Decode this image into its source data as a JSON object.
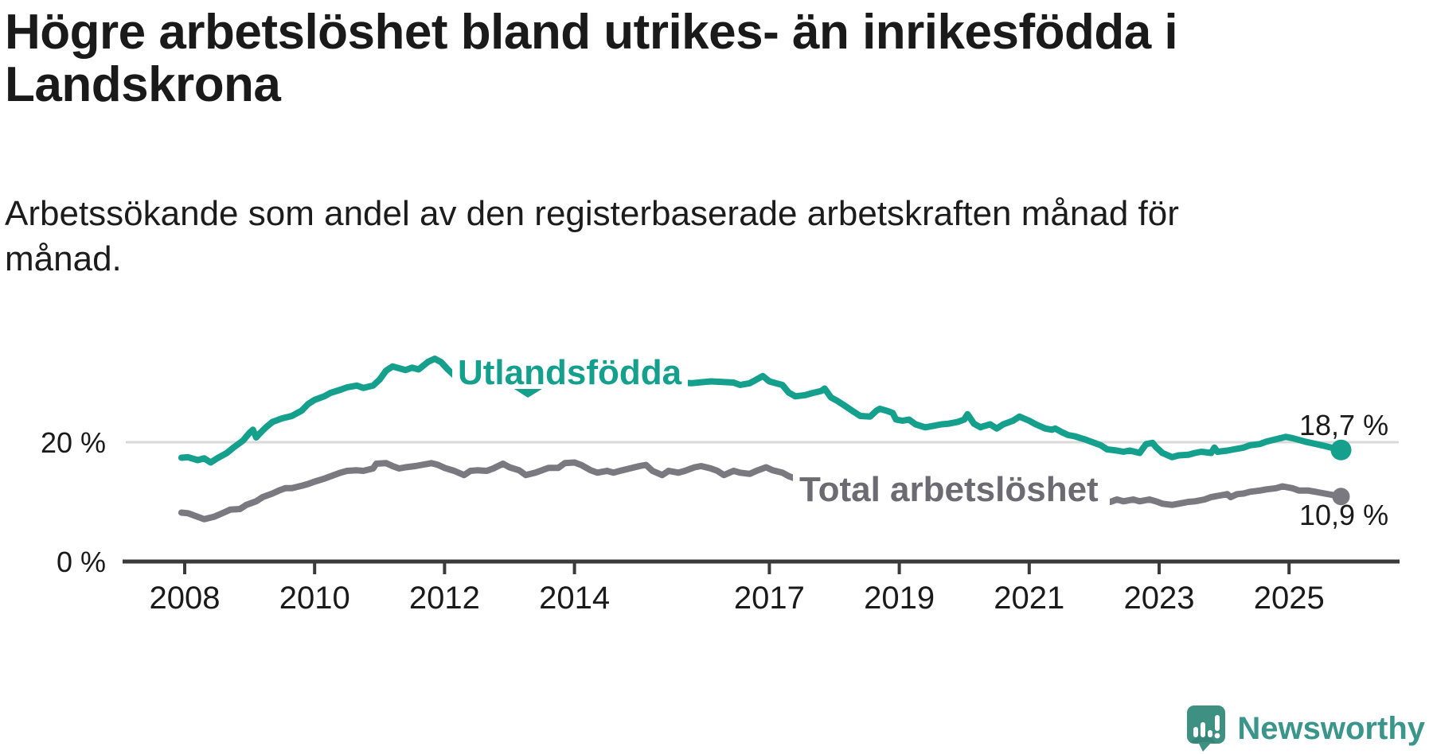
{
  "header": {
    "title_lines": [
      "Högre arbetslöshet bland utrikes- än inrikesfödda i",
      "Landskrona"
    ],
    "subtitle_lines": [
      "Arbetssökande som andel av den registerbaserade arbetskraften månad för",
      "månad."
    ]
  },
  "footer": {
    "brand": "Newsworthy",
    "logo_icon": "newsworthy-speech-bubble-chart-icon",
    "brand_color": "#3a958b",
    "logo_fill": "#3e9082"
  },
  "colors": {
    "series_utlandsfodda": "#14a08c",
    "series_total": "#7a7980",
    "series_total_label": "#6c6b72",
    "axis": "#3a3a3a",
    "gridline": "#d9d9d9",
    "text": "#1a1a1a",
    "background": "#ffffff"
  },
  "chart_data": {
    "type": "line",
    "title": "Högre arbetslöshet bland utrikes- än inrikesfödda i Landskrona",
    "subtitle": "Arbetssökande som andel av den registerbaserade arbetskraften månad för månad.",
    "xlabel": "",
    "ylabel": "",
    "x_ticks": [
      2008,
      2010,
      2012,
      2014,
      2017,
      2019,
      2021,
      2023,
      2025
    ],
    "y_ticks": [
      {
        "value": 0,
        "label": "0 %"
      },
      {
        "value": 20,
        "label": "20 %"
      }
    ],
    "xlim": [
      2007.9,
      2025.95
    ],
    "ylim": [
      0,
      46
    ],
    "grid": "single horizontal gridline at 20 %, x-axis baseline at 0 %",
    "legend_position": "inline series labels on lines",
    "series": [
      {
        "name": "Utlandsfödda",
        "color": "#14a08c",
        "end_value": 18.7,
        "end_label": "18,7 %",
        "points": [
          [
            2007.95,
            17.4
          ],
          [
            2008.05,
            17.5
          ],
          [
            2008.2,
            17.0
          ],
          [
            2008.3,
            17.3
          ],
          [
            2008.4,
            16.6
          ],
          [
            2008.5,
            17.3
          ],
          [
            2008.65,
            18.2
          ],
          [
            2008.75,
            19.1
          ],
          [
            2008.9,
            20.3
          ],
          [
            2009.0,
            21.6
          ],
          [
            2009.05,
            22.1
          ],
          [
            2009.1,
            20.8
          ],
          [
            2009.15,
            21.4
          ],
          [
            2009.25,
            22.5
          ],
          [
            2009.35,
            23.4
          ],
          [
            2009.5,
            24.0
          ],
          [
            2009.65,
            24.4
          ],
          [
            2009.8,
            25.3
          ],
          [
            2009.9,
            26.4
          ],
          [
            2010.0,
            27.1
          ],
          [
            2010.15,
            27.7
          ],
          [
            2010.25,
            28.3
          ],
          [
            2010.4,
            28.8
          ],
          [
            2010.5,
            29.2
          ],
          [
            2010.65,
            29.5
          ],
          [
            2010.75,
            29.1
          ],
          [
            2010.9,
            29.5
          ],
          [
            2011.0,
            30.5
          ],
          [
            2011.1,
            32.0
          ],
          [
            2011.2,
            32.7
          ],
          [
            2011.3,
            32.4
          ],
          [
            2011.4,
            32.1
          ],
          [
            2011.5,
            32.5
          ],
          [
            2011.6,
            32.2
          ],
          [
            2011.75,
            33.5
          ],
          [
            2011.85,
            34.0
          ],
          [
            2011.95,
            33.4
          ],
          [
            2012.05,
            32.2
          ],
          [
            2012.15,
            31.2
          ],
          [
            2012.4,
            31.0
          ],
          [
            2012.7,
            30.6
          ],
          [
            2013.0,
            30.2
          ],
          [
            2013.4,
            30.6
          ],
          [
            2013.8,
            30.0
          ],
          [
            2014.2,
            29.8
          ],
          [
            2014.6,
            30.1
          ],
          [
            2015.0,
            29.8
          ],
          [
            2015.4,
            30.1
          ],
          [
            2015.8,
            29.9
          ],
          [
            2016.1,
            30.2
          ],
          [
            2016.45,
            30.0
          ],
          [
            2016.55,
            29.6
          ],
          [
            2016.7,
            29.9
          ],
          [
            2016.8,
            30.5
          ],
          [
            2016.9,
            31.1
          ],
          [
            2017.0,
            30.2
          ],
          [
            2017.1,
            29.9
          ],
          [
            2017.2,
            29.6
          ],
          [
            2017.3,
            28.3
          ],
          [
            2017.4,
            27.7
          ],
          [
            2017.55,
            27.9
          ],
          [
            2017.65,
            28.2
          ],
          [
            2017.8,
            28.6
          ],
          [
            2017.85,
            29.0
          ],
          [
            2017.95,
            27.5
          ],
          [
            2018.05,
            26.9
          ],
          [
            2018.15,
            26.2
          ],
          [
            2018.3,
            25.1
          ],
          [
            2018.4,
            24.4
          ],
          [
            2018.55,
            24.3
          ],
          [
            2018.65,
            25.3
          ],
          [
            2018.7,
            25.6
          ],
          [
            2018.8,
            25.3
          ],
          [
            2018.9,
            24.9
          ],
          [
            2018.95,
            23.8
          ],
          [
            2019.05,
            23.6
          ],
          [
            2019.15,
            23.8
          ],
          [
            2019.25,
            23.0
          ],
          [
            2019.4,
            22.5
          ],
          [
            2019.5,
            22.7
          ],
          [
            2019.65,
            23.0
          ],
          [
            2019.75,
            23.1
          ],
          [
            2019.9,
            23.4
          ],
          [
            2020.0,
            23.8
          ],
          [
            2020.05,
            24.7
          ],
          [
            2020.15,
            23.1
          ],
          [
            2020.25,
            22.5
          ],
          [
            2020.3,
            22.7
          ],
          [
            2020.4,
            23.0
          ],
          [
            2020.5,
            22.3
          ],
          [
            2020.6,
            23.0
          ],
          [
            2020.75,
            23.6
          ],
          [
            2020.85,
            24.3
          ],
          [
            2021.0,
            23.6
          ],
          [
            2021.1,
            23.0
          ],
          [
            2021.25,
            22.3
          ],
          [
            2021.35,
            22.1
          ],
          [
            2021.4,
            22.3
          ],
          [
            2021.5,
            21.7
          ],
          [
            2021.6,
            21.2
          ],
          [
            2021.7,
            21.0
          ],
          [
            2021.85,
            20.5
          ],
          [
            2021.95,
            20.1
          ],
          [
            2022.1,
            19.5
          ],
          [
            2022.2,
            18.8
          ],
          [
            2022.35,
            18.6
          ],
          [
            2022.45,
            18.4
          ],
          [
            2022.55,
            18.6
          ],
          [
            2022.7,
            18.2
          ],
          [
            2022.8,
            19.7
          ],
          [
            2022.9,
            19.9
          ],
          [
            2022.95,
            19.2
          ],
          [
            2023.05,
            18.2
          ],
          [
            2023.2,
            17.5
          ],
          [
            2023.3,
            17.8
          ],
          [
            2023.45,
            17.9
          ],
          [
            2023.55,
            18.2
          ],
          [
            2023.65,
            18.4
          ],
          [
            2023.8,
            18.2
          ],
          [
            2023.85,
            19.1
          ],
          [
            2023.9,
            18.4
          ],
          [
            2024.05,
            18.6
          ],
          [
            2024.15,
            18.8
          ],
          [
            2024.3,
            19.1
          ],
          [
            2024.4,
            19.5
          ],
          [
            2024.55,
            19.7
          ],
          [
            2024.65,
            20.1
          ],
          [
            2024.8,
            20.5
          ],
          [
            2024.95,
            20.9
          ],
          [
            2025.05,
            20.7
          ],
          [
            2025.25,
            20.1
          ],
          [
            2025.5,
            19.5
          ],
          [
            2025.65,
            19.1
          ],
          [
            2025.8,
            18.7
          ]
        ]
      },
      {
        "name": "Total arbetslöshet",
        "color": "#7a7980",
        "end_value": 10.9,
        "end_label": "10,9 %",
        "points": [
          [
            2007.95,
            8.2
          ],
          [
            2008.05,
            8.1
          ],
          [
            2008.2,
            7.5
          ],
          [
            2008.3,
            7.1
          ],
          [
            2008.45,
            7.5
          ],
          [
            2008.6,
            8.2
          ],
          [
            2008.7,
            8.7
          ],
          [
            2008.85,
            8.8
          ],
          [
            2008.95,
            9.5
          ],
          [
            2009.1,
            10.1
          ],
          [
            2009.2,
            10.8
          ],
          [
            2009.35,
            11.4
          ],
          [
            2009.45,
            11.9
          ],
          [
            2009.55,
            12.3
          ],
          [
            2009.65,
            12.3
          ],
          [
            2009.8,
            12.7
          ],
          [
            2009.9,
            13.0
          ],
          [
            2010.0,
            13.4
          ],
          [
            2010.15,
            13.9
          ],
          [
            2010.25,
            14.3
          ],
          [
            2010.4,
            14.9
          ],
          [
            2010.5,
            15.2
          ],
          [
            2010.65,
            15.3
          ],
          [
            2010.75,
            15.2
          ],
          [
            2010.9,
            15.6
          ],
          [
            2010.95,
            16.4
          ],
          [
            2011.1,
            16.5
          ],
          [
            2011.2,
            16.0
          ],
          [
            2011.3,
            15.6
          ],
          [
            2011.4,
            15.8
          ],
          [
            2011.55,
            16.0
          ],
          [
            2011.65,
            16.2
          ],
          [
            2011.8,
            16.5
          ],
          [
            2011.9,
            16.2
          ],
          [
            2012.0,
            15.7
          ],
          [
            2012.15,
            15.2
          ],
          [
            2012.3,
            14.5
          ],
          [
            2012.4,
            15.2
          ],
          [
            2012.5,
            15.3
          ],
          [
            2012.65,
            15.2
          ],
          [
            2012.75,
            15.6
          ],
          [
            2012.9,
            16.4
          ],
          [
            2013.0,
            15.8
          ],
          [
            2013.15,
            15.3
          ],
          [
            2013.25,
            14.5
          ],
          [
            2013.4,
            14.9
          ],
          [
            2013.5,
            15.3
          ],
          [
            2013.6,
            15.7
          ],
          [
            2013.75,
            15.7
          ],
          [
            2013.85,
            16.5
          ],
          [
            2014.0,
            16.6
          ],
          [
            2014.1,
            16.2
          ],
          [
            2014.25,
            15.3
          ],
          [
            2014.35,
            14.9
          ],
          [
            2014.5,
            15.2
          ],
          [
            2014.6,
            14.9
          ],
          [
            2014.7,
            15.2
          ],
          [
            2014.85,
            15.6
          ],
          [
            2015.0,
            16.0
          ],
          [
            2015.1,
            16.2
          ],
          [
            2015.2,
            15.2
          ],
          [
            2015.35,
            14.5
          ],
          [
            2015.45,
            15.2
          ],
          [
            2015.6,
            14.9
          ],
          [
            2015.7,
            15.2
          ],
          [
            2015.85,
            15.8
          ],
          [
            2015.95,
            16.0
          ],
          [
            2016.1,
            15.6
          ],
          [
            2016.2,
            15.2
          ],
          [
            2016.3,
            14.5
          ],
          [
            2016.45,
            15.2
          ],
          [
            2016.55,
            14.9
          ],
          [
            2016.7,
            14.7
          ],
          [
            2016.8,
            15.2
          ],
          [
            2016.95,
            15.8
          ],
          [
            2017.05,
            15.3
          ],
          [
            2017.2,
            14.9
          ],
          [
            2017.3,
            14.3
          ],
          [
            2017.4,
            13.9
          ],
          [
            2017.6,
            13.4
          ],
          [
            2017.9,
            12.9
          ],
          [
            2018.2,
            12.4
          ],
          [
            2018.6,
            12.0
          ],
          [
            2019.0,
            11.8
          ],
          [
            2019.4,
            11.6
          ],
          [
            2019.8,
            11.9
          ],
          [
            2020.1,
            12.4
          ],
          [
            2020.4,
            13.1
          ],
          [
            2020.7,
            12.8
          ],
          [
            2021.0,
            12.2
          ],
          [
            2021.4,
            11.5
          ],
          [
            2021.8,
            10.8
          ],
          [
            2022.1,
            10.2
          ],
          [
            2022.25,
            10.0
          ],
          [
            2022.35,
            10.4
          ],
          [
            2022.45,
            10.1
          ],
          [
            2022.6,
            10.4
          ],
          [
            2022.7,
            10.1
          ],
          [
            2022.85,
            10.4
          ],
          [
            2022.95,
            10.1
          ],
          [
            2023.05,
            9.7
          ],
          [
            2023.2,
            9.5
          ],
          [
            2023.3,
            9.7
          ],
          [
            2023.45,
            10.0
          ],
          [
            2023.55,
            10.1
          ],
          [
            2023.7,
            10.4
          ],
          [
            2023.8,
            10.8
          ],
          [
            2023.9,
            11.0
          ],
          [
            2024.05,
            11.3
          ],
          [
            2024.1,
            10.8
          ],
          [
            2024.2,
            11.3
          ],
          [
            2024.3,
            11.4
          ],
          [
            2024.4,
            11.7
          ],
          [
            2024.55,
            11.9
          ],
          [
            2024.65,
            12.1
          ],
          [
            2024.8,
            12.3
          ],
          [
            2024.9,
            12.6
          ],
          [
            2025.05,
            12.3
          ],
          [
            2025.15,
            11.9
          ],
          [
            2025.3,
            11.9
          ],
          [
            2025.45,
            11.6
          ],
          [
            2025.65,
            11.2
          ],
          [
            2025.8,
            10.9
          ]
        ]
      }
    ]
  }
}
